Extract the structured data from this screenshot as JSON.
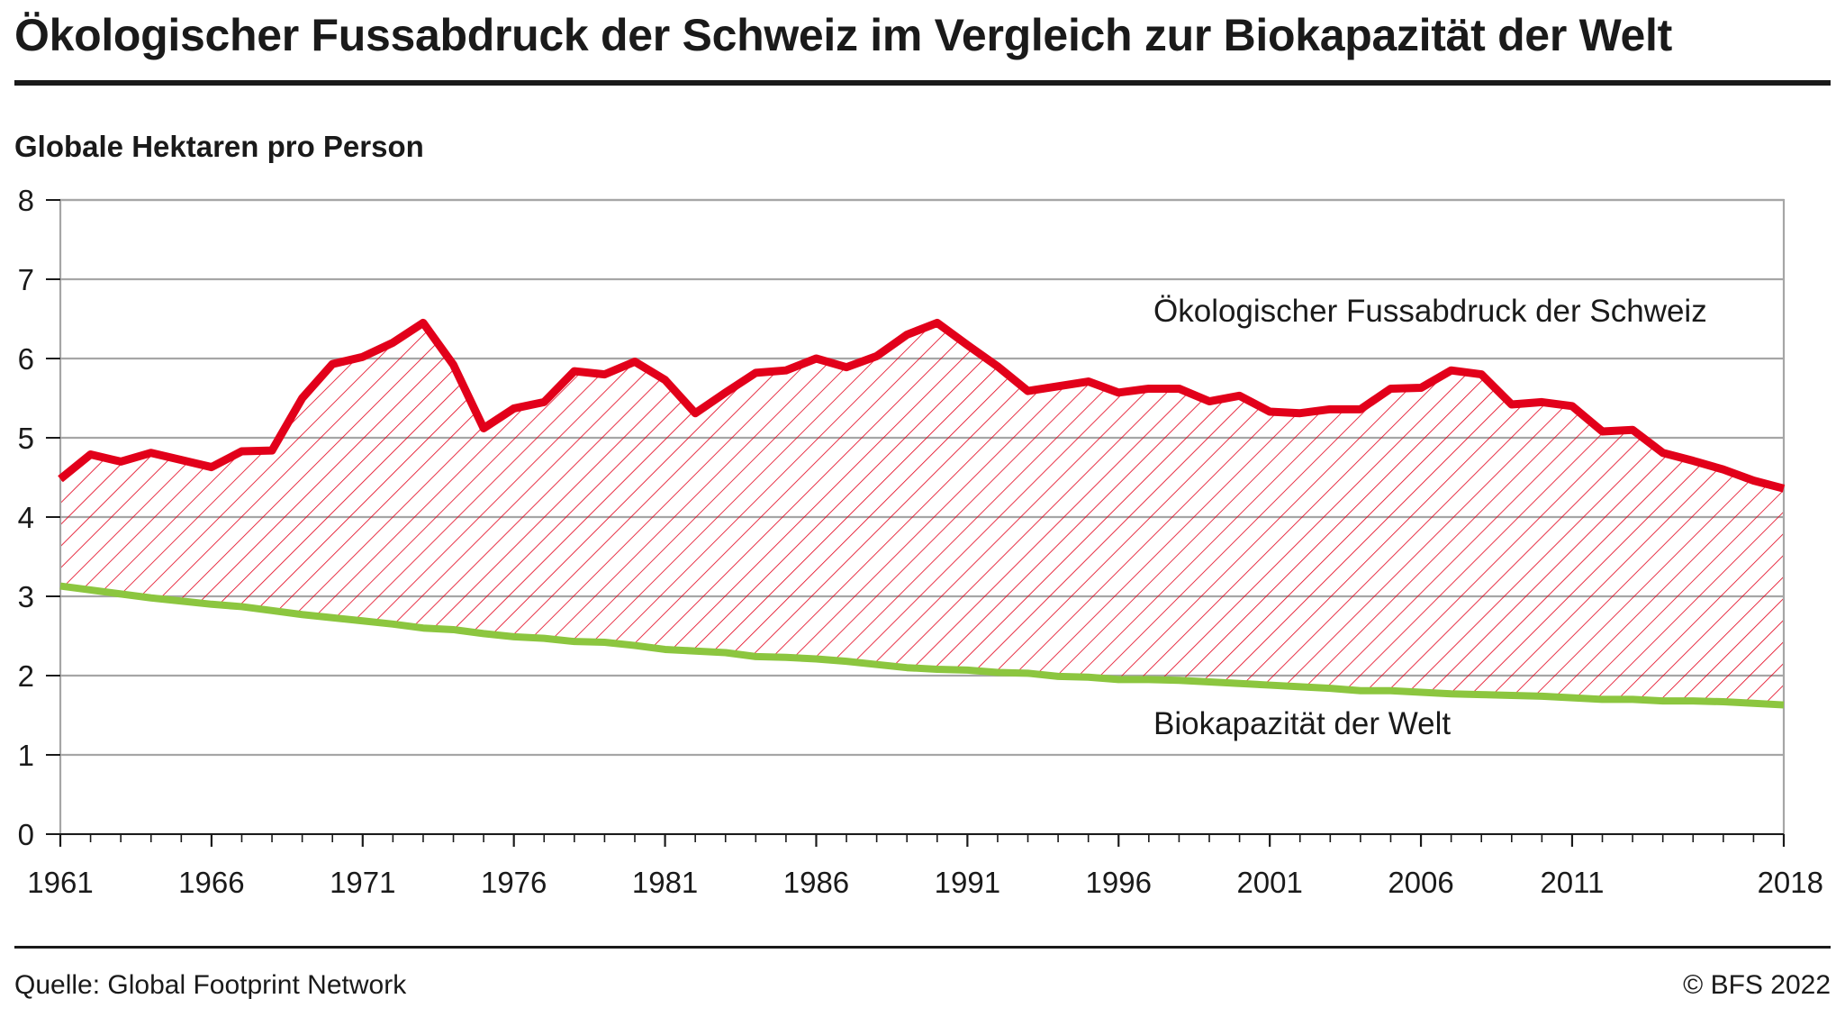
{
  "header": {
    "title": "Ökologischer Fussabdruck der Schweiz im Vergleich zur Biokapazität der Welt",
    "unit_label": "Globale Hektaren pro Person"
  },
  "footer": {
    "source": "Quelle: Global Footprint Network",
    "copyright": "© BFS 2022"
  },
  "colors": {
    "footprint": "#e2001a",
    "biocapacity": "#8cc63f",
    "grid": "#a6a6a6",
    "hatch": "#e2001a"
  },
  "chart_data": {
    "type": "line",
    "title": "Ökologischer Fussabdruck der Schweiz im Vergleich zur Biokapazität der Welt",
    "ylabel": "Globale Hektaren pro Person",
    "xlabel": "",
    "ylim": [
      0,
      8
    ],
    "xlim": [
      1961,
      2018
    ],
    "yticks": [
      "0",
      "1",
      "2",
      "3",
      "4",
      "5",
      "6",
      "7",
      "8"
    ],
    "xticks": [
      "1961",
      "1966",
      "1971",
      "1976",
      "1981",
      "1986",
      "1991",
      "1996",
      "2001",
      "2006",
      "2011",
      "2018"
    ],
    "grid": true,
    "fill_between": "hatched",
    "x": [
      1961,
      1962,
      1963,
      1964,
      1965,
      1966,
      1967,
      1968,
      1969,
      1970,
      1971,
      1972,
      1973,
      1974,
      1975,
      1976,
      1977,
      1978,
      1979,
      1980,
      1981,
      1982,
      1983,
      1984,
      1985,
      1986,
      1987,
      1988,
      1989,
      1990,
      1991,
      1992,
      1993,
      1994,
      1995,
      1996,
      1997,
      1998,
      1999,
      2000,
      2001,
      2002,
      2003,
      2004,
      2005,
      2006,
      2007,
      2008,
      2009,
      2010,
      2011,
      2012,
      2013,
      2014,
      2015,
      2016,
      2017,
      2018
    ],
    "series": [
      {
        "name": "Ökologischer Fussabdruck der Schweiz",
        "values": [
          4.48,
          4.79,
          4.7,
          4.81,
          4.72,
          4.63,
          4.83,
          4.84,
          5.5,
          5.93,
          6.02,
          6.2,
          6.45,
          5.92,
          5.12,
          5.37,
          5.45,
          5.84,
          5.8,
          5.96,
          5.73,
          5.31,
          5.57,
          5.82,
          5.85,
          6.0,
          5.89,
          6.03,
          6.3,
          6.45,
          6.17,
          5.9,
          5.59,
          5.65,
          5.71,
          5.57,
          5.62,
          5.62,
          5.46,
          5.53,
          5.33,
          5.31,
          5.36,
          5.36,
          5.62,
          5.63,
          5.85,
          5.8,
          5.42,
          5.45,
          5.4,
          5.08,
          5.1,
          4.81,
          4.71,
          4.6,
          4.46,
          4.36
        ]
      },
      {
        "name": "Biokapazität der Welt",
        "values": [
          3.13,
          3.08,
          3.03,
          2.98,
          2.94,
          2.9,
          2.87,
          2.82,
          2.77,
          2.73,
          2.69,
          2.65,
          2.6,
          2.58,
          2.53,
          2.49,
          2.47,
          2.43,
          2.42,
          2.38,
          2.33,
          2.31,
          2.29,
          2.24,
          2.23,
          2.21,
          2.18,
          2.14,
          2.1,
          2.08,
          2.07,
          2.04,
          2.03,
          1.99,
          1.98,
          1.95,
          1.95,
          1.94,
          1.92,
          1.9,
          1.88,
          1.86,
          1.84,
          1.81,
          1.81,
          1.79,
          1.77,
          1.76,
          1.75,
          1.74,
          1.72,
          1.7,
          1.7,
          1.68,
          1.68,
          1.67,
          1.65,
          1.63
        ]
      }
    ],
    "annotations": [
      "Ökologischer Fussabdruck der Schweiz",
      "Biokapazität der Welt"
    ]
  }
}
